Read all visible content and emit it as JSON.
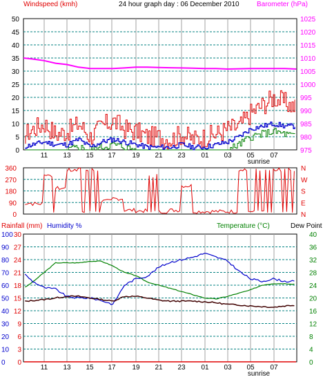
{
  "colors": {
    "wind_gust": "#e00000",
    "wind_avg": "#0000cc",
    "wind_min": "#008000",
    "barometer": "#ff00ff",
    "direction": "#e00000",
    "rainfall": "#e00000",
    "humidity": "#0000cc",
    "temperature": "#008000",
    "dew_point": "#400000",
    "grid": "#008080",
    "axis_frame": "#000000",
    "header_left": "#e00000",
    "header_mid": "#000000",
    "header_right": "#ff00ff",
    "hum_axis": "#0000cc",
    "temp_axis": "#008000"
  },
  "chart_data": [
    {
      "type": "line",
      "title": "24 hour graph day : 06 December 2010",
      "ylabel": "Windspeed (kmh)",
      "y2label": "Barometer (hPa)",
      "ylim": [
        0,
        50
      ],
      "y2lim": [
        975,
        1025
      ],
      "yticks": [
        0,
        5,
        10,
        15,
        20,
        25,
        30,
        35,
        40,
        45,
        50
      ],
      "y2ticks": [
        975,
        980,
        985,
        990,
        995,
        1000,
        1005,
        1010,
        1015,
        1020,
        1025
      ],
      "xticks": [
        "11",
        "13",
        "15",
        "17",
        "19",
        "21",
        "23",
        "01",
        "03",
        "05",
        "07"
      ],
      "xmarker": "sunrise",
      "x_hours": [
        9,
        10,
        11,
        12,
        13,
        14,
        15,
        16,
        17,
        18,
        19,
        20,
        21,
        22,
        23,
        24,
        25,
        26,
        27,
        28,
        29,
        30,
        31,
        32,
        33
      ],
      "series": [
        {
          "key": "gust",
          "values": [
            5,
            8,
            10,
            6,
            7,
            10,
            5,
            9,
            11,
            8,
            7,
            5,
            5,
            4,
            6,
            4,
            5,
            6,
            8,
            9,
            14,
            17,
            20,
            18,
            16
          ]
        },
        {
          "key": "avg",
          "values": [
            1,
            2,
            3,
            2,
            2,
            4,
            1,
            3,
            4,
            3,
            2,
            1,
            1,
            1,
            2,
            1,
            1,
            2,
            3,
            5,
            8,
            9,
            10,
            9,
            9
          ]
        },
        {
          "key": "min",
          "values": [
            0,
            0,
            0,
            0,
            0,
            1,
            0,
            1,
            2,
            1,
            0,
            0,
            0,
            0,
            0,
            0,
            0,
            0,
            0,
            2,
            5,
            6,
            7,
            6,
            5
          ]
        },
        {
          "key": "barometer",
          "values": [
            1010,
            1009.6,
            1009,
            1008,
            1007.5,
            1006.5,
            1006,
            1006,
            1006,
            1006.2,
            1006.5,
            1006.5,
            1006.4,
            1006.3,
            1006.2,
            1006.1,
            1006,
            1006,
            1005.8,
            1005.9,
            1006,
            1006,
            1006,
            1006,
            1005.8
          ]
        }
      ]
    },
    {
      "type": "line",
      "yticks_left": [
        0,
        90,
        180,
        270,
        360
      ],
      "yticks_right": [
        "N",
        "E",
        "S",
        "W",
        "N"
      ],
      "ylim": [
        0,
        360
      ],
      "series": [
        {
          "key": "direction",
          "values": [
            85,
            80,
            300,
            200,
            340,
            350,
            340,
            100,
            120,
            30,
            25,
            300,
            20,
            30,
            220,
            20,
            20,
            20,
            20,
            340,
            340,
            345,
            345,
            345,
            345
          ]
        }
      ]
    },
    {
      "type": "line",
      "ylabel": "Rainfall (mm)",
      "ylabel2": "Humidity %",
      "y2label": "Temperature (°C)",
      "y2label2": "Dew Point",
      "ylim": [
        0,
        30
      ],
      "yticks_rain": [
        0,
        3,
        6,
        9,
        12,
        15,
        18,
        21,
        24,
        27,
        30
      ],
      "yticks_humidity": [
        0,
        10,
        20,
        30,
        40,
        50,
        60,
        70,
        80,
        90,
        100
      ],
      "yticks_temp": [
        0,
        4,
        8,
        12,
        16,
        20,
        24,
        28,
        32,
        36,
        40
      ],
      "series": [
        {
          "key": "rainfall",
          "values": [
            0,
            0,
            0,
            0,
            0,
            0,
            0,
            0,
            0,
            0,
            0,
            0,
            0,
            0,
            0,
            0,
            0,
            0,
            0,
            0,
            0,
            0,
            0,
            0,
            0
          ]
        },
        {
          "key": "humidity",
          "values": [
            71,
            63,
            58,
            57,
            51,
            50,
            50,
            48,
            45,
            60,
            65,
            67,
            74,
            78,
            80,
            82,
            85,
            82,
            79,
            71,
            65,
            63,
            65,
            63,
            63
          ]
        },
        {
          "key": "temperature",
          "values": [
            22.5,
            25,
            28,
            31,
            31,
            31,
            31.5,
            31.5,
            30,
            28,
            27,
            25,
            24,
            23,
            22,
            21,
            20,
            19.7,
            20.5,
            21.5,
            22.5,
            24,
            24.5,
            24.5,
            24.3
          ]
        },
        {
          "key": "dew_point",
          "values": [
            18.8,
            19.2,
            19.5,
            20,
            20.5,
            20.5,
            20,
            19.5,
            19,
            20.5,
            20.5,
            20,
            19.3,
            19,
            19,
            19,
            18.8,
            18.5,
            18,
            17.8,
            17.5,
            17.3,
            17.1,
            17.5,
            17.8
          ]
        }
      ]
    }
  ]
}
